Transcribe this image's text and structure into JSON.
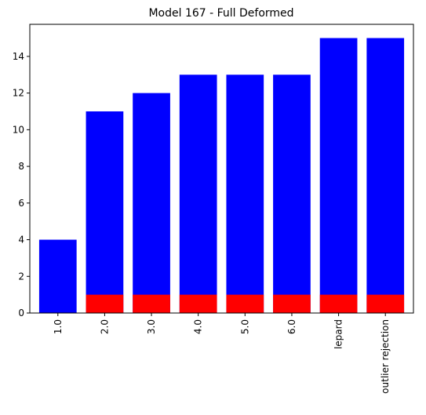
{
  "chart_data": {
    "type": "bar",
    "title": "Model 167 - Full Deformed",
    "xlabel": "",
    "ylabel": "",
    "categories": [
      "1.0",
      "2.0",
      "3.0",
      "4.0",
      "5.0",
      "6.0",
      "lepard",
      "outlier rejection"
    ],
    "series": [
      {
        "color": "#0000ff",
        "values": [
          4,
          11,
          12,
          13,
          13,
          13,
          15,
          15
        ]
      },
      {
        "color": "#ff0000",
        "values": [
          0,
          1,
          1,
          1,
          1,
          1,
          1,
          1
        ]
      }
    ],
    "ylim": [
      0,
      15.75
    ],
    "yticks": [
      0,
      2,
      4,
      6,
      8,
      10,
      12,
      14
    ],
    "grid": false,
    "legend": "none"
  }
}
